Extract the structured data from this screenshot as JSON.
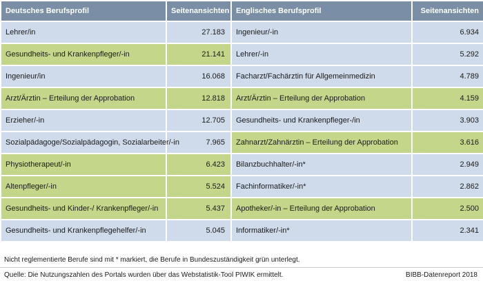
{
  "header": {
    "col_de": "Deutsches Berufsprofil",
    "col_de_views": "Seitenansichten",
    "col_en": "Englisches Berufsprofil",
    "col_en_views": "Seitenansichten"
  },
  "rows": [
    {
      "de": "Lehrer/in",
      "de_views": "27.183",
      "de_color": "blue",
      "en": "Ingenieur/-in",
      "en_views": "6.934",
      "en_color": "blue"
    },
    {
      "de": "Gesundheits- und Krankenpfleger/-in",
      "de_views": "21.141",
      "de_color": "green",
      "en": "Lehrer/-in",
      "en_views": "5.292",
      "en_color": "blue"
    },
    {
      "de": "Ingenieur/in",
      "de_views": "16.068",
      "de_color": "blue",
      "en": "Facharzt/Fachärztin für Allgemeinmedizin",
      "en_views": "4.789",
      "en_color": "blue"
    },
    {
      "de": "Arzt/Ärztin – Erteilung der Approbation",
      "de_views": "12.818",
      "de_color": "green",
      "en": "Arzt/Ärztin – Erteilung der Approbation",
      "en_views": "4.159",
      "en_color": "green"
    },
    {
      "de": "Erzieher/-in",
      "de_views": "12.705",
      "de_color": "blue",
      "en": "Gesundheits- und Krankenpfleger-/in",
      "en_views": "3.903",
      "en_color": "blue"
    },
    {
      "de": "Sozialpädagoge/Sozialpädagogin, Sozialarbeiter/-in",
      "de_views": "7.965",
      "de_color": "blue",
      "en": "Zahnarzt/Zahnärztin – Erteilung der Approbation",
      "en_views": "3.616",
      "en_color": "green"
    },
    {
      "de": "Physiotherapeut/-in",
      "de_views": "6.423",
      "de_color": "green",
      "en": "Bilanzbuchhalter/-in*",
      "en_views": "2.949",
      "en_color": "blue"
    },
    {
      "de": "Altenpfleger/-in",
      "de_views": "5.524",
      "de_color": "green",
      "en": "Fachinformatiker/-in*",
      "en_views": "2.862",
      "en_color": "blue"
    },
    {
      "de": "Gesundheits- und Kinder-/ Krankenpfleger/-in",
      "de_views": "5.437",
      "de_color": "green",
      "en": "Apotheker/-in – Erteilung der Approbation",
      "en_views": "2.500",
      "en_color": "green"
    },
    {
      "de": "Gesundheits- und Krankenpflegehelfer/-in",
      "de_views": "5.045",
      "de_color": "blue",
      "en": "Informatiker/-in*",
      "en_views": "2.341",
      "en_color": "blue"
    }
  ],
  "footer": {
    "note": "Nicht reglementierte Berufe sind mit * markiert, die Berufe in Bundeszuständigkeit grün unterlegt.",
    "source": "Quelle: Die Nutzungszahlen des Portals wurden über das Webstatistik-Tool PIWIK ermittelt.",
    "credit": "BIBB-Datenreport 2018"
  },
  "colors": {
    "header": "#7a8fa6",
    "blue": "#cfdaea",
    "green": "#c4d68a"
  }
}
